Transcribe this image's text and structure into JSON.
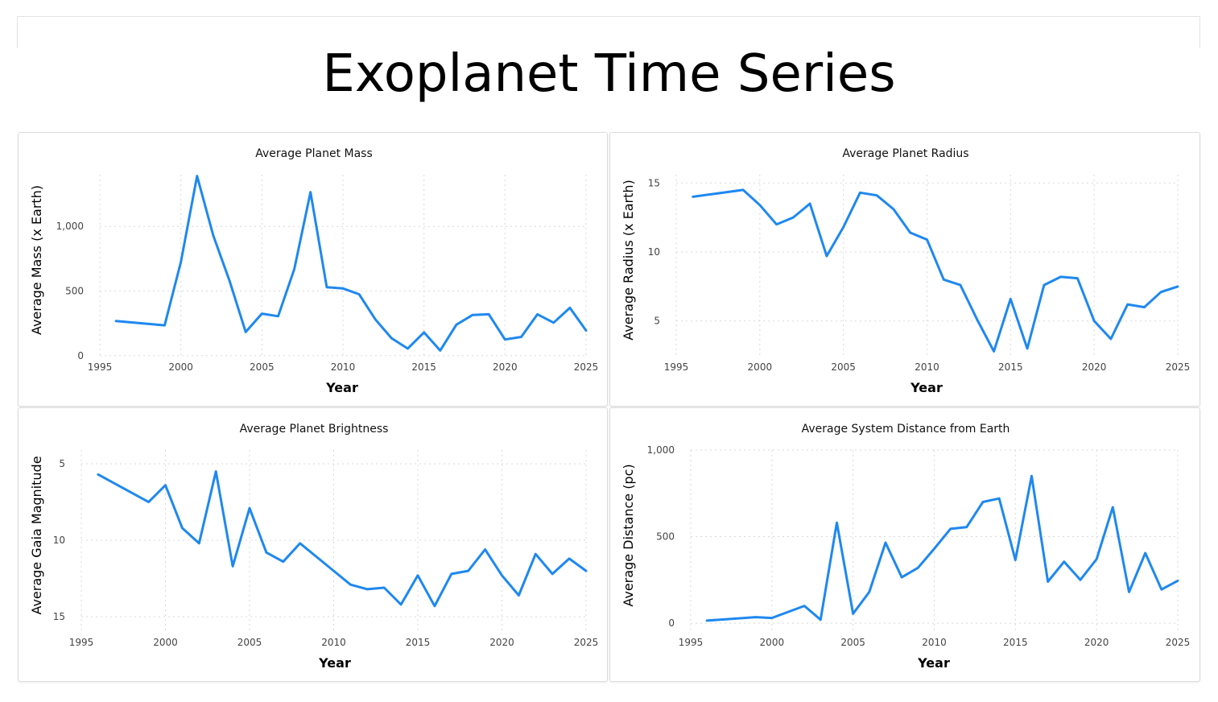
{
  "page": {
    "title": "Exoplanet Time Series"
  },
  "chart_data": [
    {
      "type": "line",
      "title": "Average Planet Mass",
      "xlabel": "Year",
      "ylabel": "Average Mass (x Earth)",
      "xlim": [
        1995,
        2025
      ],
      "ylim": [
        -20,
        1400
      ],
      "reversed": false,
      "xticks": [
        1995,
        2000,
        2005,
        2010,
        2015,
        2020,
        2025
      ],
      "yticks": [
        0,
        500,
        1000
      ],
      "ytick_labels": [
        "0",
        "500",
        "1,000"
      ],
      "grid": true,
      "color": "#1e88f0",
      "x": [
        1996,
        1999,
        2000,
        2001,
        2002,
        2003,
        2004,
        2005,
        2006,
        2007,
        2008,
        2009,
        2010,
        2011,
        2012,
        2013,
        2014,
        2015,
        2016,
        2017,
        2018,
        2019,
        2020,
        2021,
        2022,
        2023,
        2024,
        2025
      ],
      "y": [
        268,
        235,
        725,
        1390,
        930,
        580,
        183,
        325,
        305,
        670,
        1265,
        530,
        520,
        475,
        280,
        135,
        55,
        180,
        40,
        240,
        315,
        320,
        125,
        145,
        320,
        255,
        370,
        195
      ]
    },
    {
      "type": "line",
      "title": "Average Planet Radius",
      "xlabel": "Year",
      "ylabel": "Average Radius (x Earth)",
      "xlim": [
        1995,
        2025
      ],
      "ylim": [
        2.3,
        15.6
      ],
      "reversed": false,
      "xticks": [
        1995,
        2000,
        2005,
        2010,
        2015,
        2020,
        2025
      ],
      "yticks": [
        5,
        10,
        15
      ],
      "ytick_labels": [
        "5",
        "10",
        "15"
      ],
      "grid": true,
      "color": "#1e88f0",
      "x": [
        1996,
        1999,
        2000,
        2001,
        2002,
        2003,
        2004,
        2005,
        2006,
        2007,
        2008,
        2009,
        2010,
        2011,
        2012,
        2013,
        2014,
        2015,
        2016,
        2017,
        2018,
        2019,
        2020,
        2021,
        2022,
        2023,
        2024,
        2025
      ],
      "y": [
        14.0,
        14.5,
        13.4,
        12.0,
        12.5,
        13.5,
        9.7,
        11.8,
        14.3,
        14.1,
        13.1,
        11.4,
        10.9,
        8.0,
        7.6,
        5.1,
        2.8,
        6.6,
        3.0,
        7.6,
        8.2,
        8.1,
        5.0,
        3.7,
        6.2,
        6.0,
        7.1,
        7.5
      ]
    },
    {
      "type": "line",
      "title": "Average Planet Brightness",
      "xlabel": "Year",
      "ylabel": "Average Gaia Magnitude",
      "xlim": [
        1995,
        2025
      ],
      "ylim": [
        4.1,
        16.1
      ],
      "reversed": true,
      "xticks": [
        1995,
        2000,
        2005,
        2010,
        2015,
        2020,
        2025
      ],
      "yticks": [
        5,
        10,
        15
      ],
      "ytick_labels": [
        "5",
        "10",
        "15"
      ],
      "grid": true,
      "color": "#1e88f0",
      "x": [
        1996,
        1999,
        2000,
        2001,
        2002,
        2003,
        2004,
        2005,
        2006,
        2007,
        2008,
        2009,
        2010,
        2011,
        2012,
        2013,
        2014,
        2015,
        2016,
        2017,
        2018,
        2019,
        2020,
        2021,
        2022,
        2023,
        2024,
        2025
      ],
      "y": [
        5.7,
        7.5,
        6.4,
        9.2,
        10.2,
        5.5,
        11.7,
        7.9,
        10.8,
        11.4,
        10.2,
        11.1,
        12.0,
        12.9,
        13.2,
        13.1,
        14.2,
        12.3,
        14.3,
        12.2,
        12.0,
        10.6,
        12.3,
        13.6,
        10.9,
        12.2,
        11.2,
        12.0
      ]
    },
    {
      "type": "line",
      "title": "Average System Distance from Earth",
      "xlabel": "Year",
      "ylabel": "Average Distance (pc)",
      "xlim": [
        1995,
        2025
      ],
      "ylim": [
        -60,
        1000
      ],
      "reversed": false,
      "xticks": [
        1995,
        2000,
        2005,
        2010,
        2015,
        2020,
        2025
      ],
      "yticks": [
        0,
        500,
        1000
      ],
      "ytick_labels": [
        "0",
        "500",
        "1,000"
      ],
      "grid": true,
      "color": "#1e88f0",
      "x": [
        1996,
        1999,
        2000,
        2001,
        2002,
        2003,
        2004,
        2005,
        2006,
        2007,
        2008,
        2009,
        2010,
        2011,
        2012,
        2013,
        2014,
        2015,
        2016,
        2017,
        2018,
        2019,
        2020,
        2021,
        2022,
        2023,
        2024,
        2025
      ],
      "y": [
        15,
        35,
        30,
        65,
        100,
        20,
        580,
        55,
        180,
        465,
        265,
        320,
        430,
        545,
        555,
        700,
        720,
        365,
        850,
        240,
        355,
        250,
        370,
        670,
        180,
        405,
        195,
        245
      ]
    }
  ]
}
